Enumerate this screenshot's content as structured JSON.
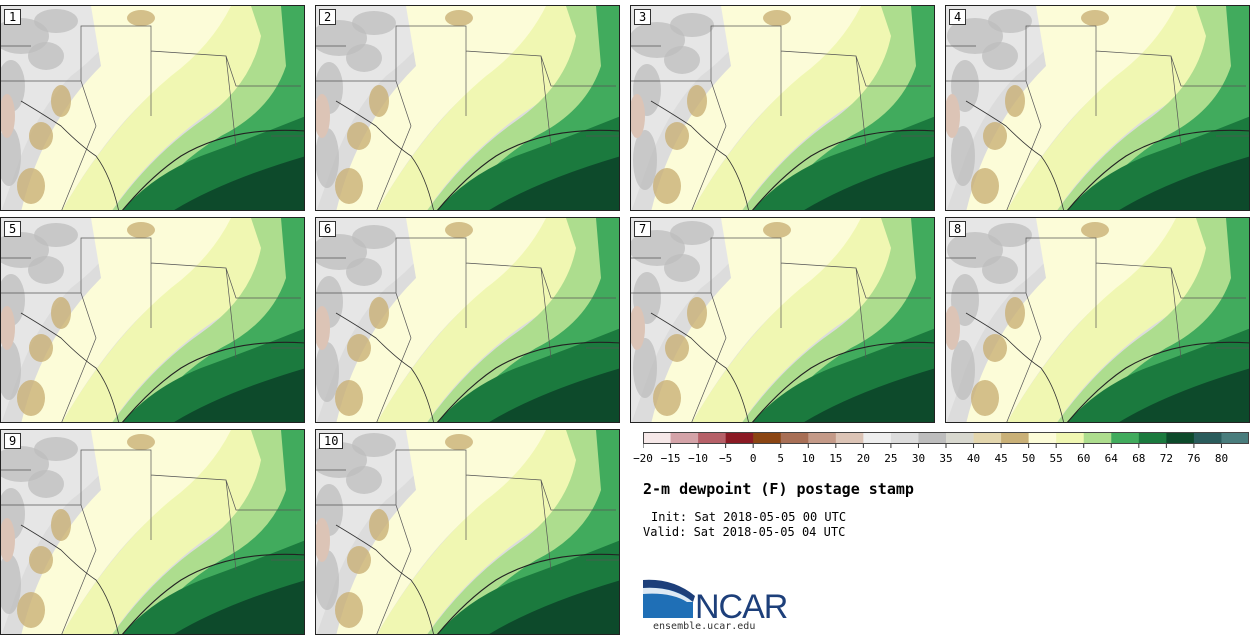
{
  "members": [
    "1",
    "2",
    "3",
    "4",
    "5",
    "6",
    "7",
    "8",
    "9",
    "10"
  ],
  "colorbar": {
    "colors": [
      "#f6e8e8",
      "#d4a3a8",
      "#b66068",
      "#8b1a24",
      "#8b4513",
      "#a86f56",
      "#c49a88",
      "#dcc4b6",
      "#eeeeee",
      "#dcdcdc",
      "#bdbdbd",
      "#d8d8cf",
      "#e3d6ad",
      "#c9b077",
      "#fcfcd8",
      "#f0f7b2",
      "#addd8e",
      "#41ab5d",
      "#1b7a3e",
      "#0d4a2b",
      "#2a5c5c",
      "#497d7d"
    ],
    "tick_labels": [
      "−20",
      "−15",
      "−10",
      "−5",
      "0",
      "5",
      "10",
      "15",
      "20",
      "25",
      "30",
      "35",
      "40",
      "45",
      "50",
      "55",
      "60",
      "64",
      "68",
      "72",
      "76",
      "80"
    ]
  },
  "title": "2-m dewpoint (F) postage stamp",
  "init_line": "Init: Sat 2018-05-05 00 UTC",
  "valid_line": "Valid: Sat 2018-05-05 04 UTC",
  "logo": {
    "text": "NCAR",
    "url": "ensemble.ucar.edu",
    "blue": "#1f6fb6",
    "navy": "#1d3f7a"
  }
}
